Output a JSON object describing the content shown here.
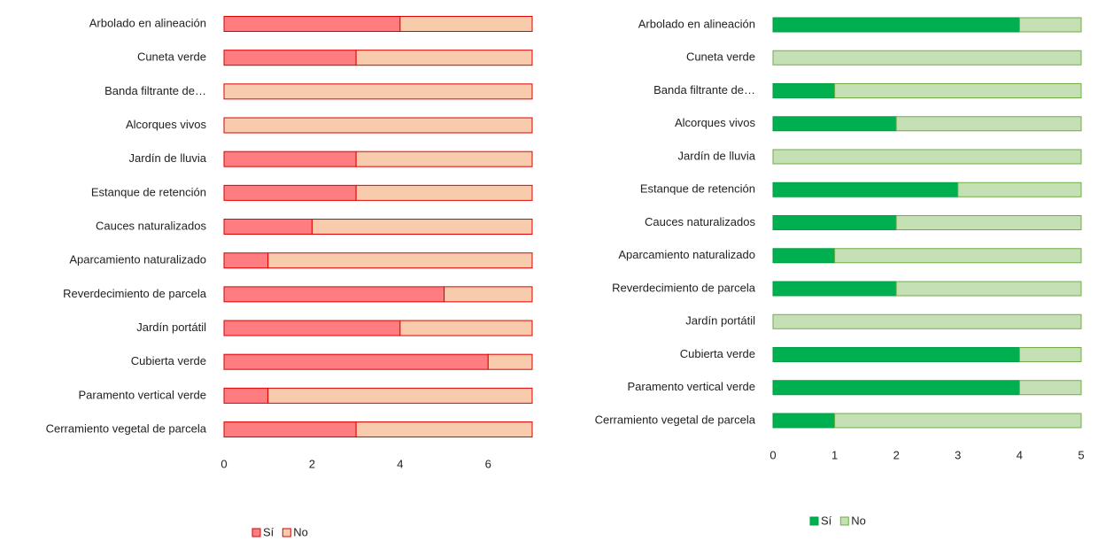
{
  "chart_data": [
    {
      "type": "stacked-bar-horizontal",
      "categories": [
        "Arbolado en alineación",
        "Cuneta verde",
        "Banda filtrante de…",
        "Alcorques vivos",
        "Jardín de lluvia",
        "Estanque de retención",
        "Cauces naturalizados",
        "Aparcamiento naturalizado",
        "Reverdecimiento de parcela",
        "Jardín portátil",
        "Cubierta verde",
        "Paramento vertical verde",
        "Cerramiento vegetal de parcela"
      ],
      "series": [
        {
          "name": "Sí",
          "color": "#ff7c80",
          "values": [
            4,
            3,
            0,
            0,
            3,
            3,
            2,
            1,
            5,
            4,
            6,
            1,
            3
          ]
        },
        {
          "name": "No",
          "color": "#f8cbad",
          "values": [
            3,
            4,
            7,
            7,
            4,
            4,
            5,
            6,
            2,
            3,
            1,
            6,
            4
          ]
        }
      ],
      "xlim": [
        0,
        7
      ],
      "xticks": [
        0,
        2,
        4,
        6
      ]
    },
    {
      "type": "stacked-bar-horizontal",
      "categories": [
        "Arbolado en alineación",
        "Cuneta verde",
        "Banda filtrante de…",
        "Alcorques vivos",
        "Jardín de lluvia",
        "Estanque de retención",
        "Cauces naturalizados",
        "Aparcamiento naturalizado",
        "Reverdecimiento de parcela",
        "Jardín portátil",
        "Cubierta verde",
        "Paramento vertical verde",
        "Cerramiento vegetal de parcela"
      ],
      "series": [
        {
          "name": "Sí",
          "color": "#00b050",
          "values": [
            4,
            0,
            1,
            2,
            0,
            3,
            2,
            1,
            2,
            0,
            4,
            4,
            1
          ]
        },
        {
          "name": "No",
          "color": "#c5e0b4",
          "values": [
            1,
            5,
            4,
            3,
            5,
            2,
            3,
            4,
            3,
            5,
            1,
            1,
            4
          ]
        }
      ],
      "xlim": [
        0,
        5
      ],
      "xticks": [
        0,
        1,
        2,
        3,
        4,
        5
      ]
    }
  ]
}
